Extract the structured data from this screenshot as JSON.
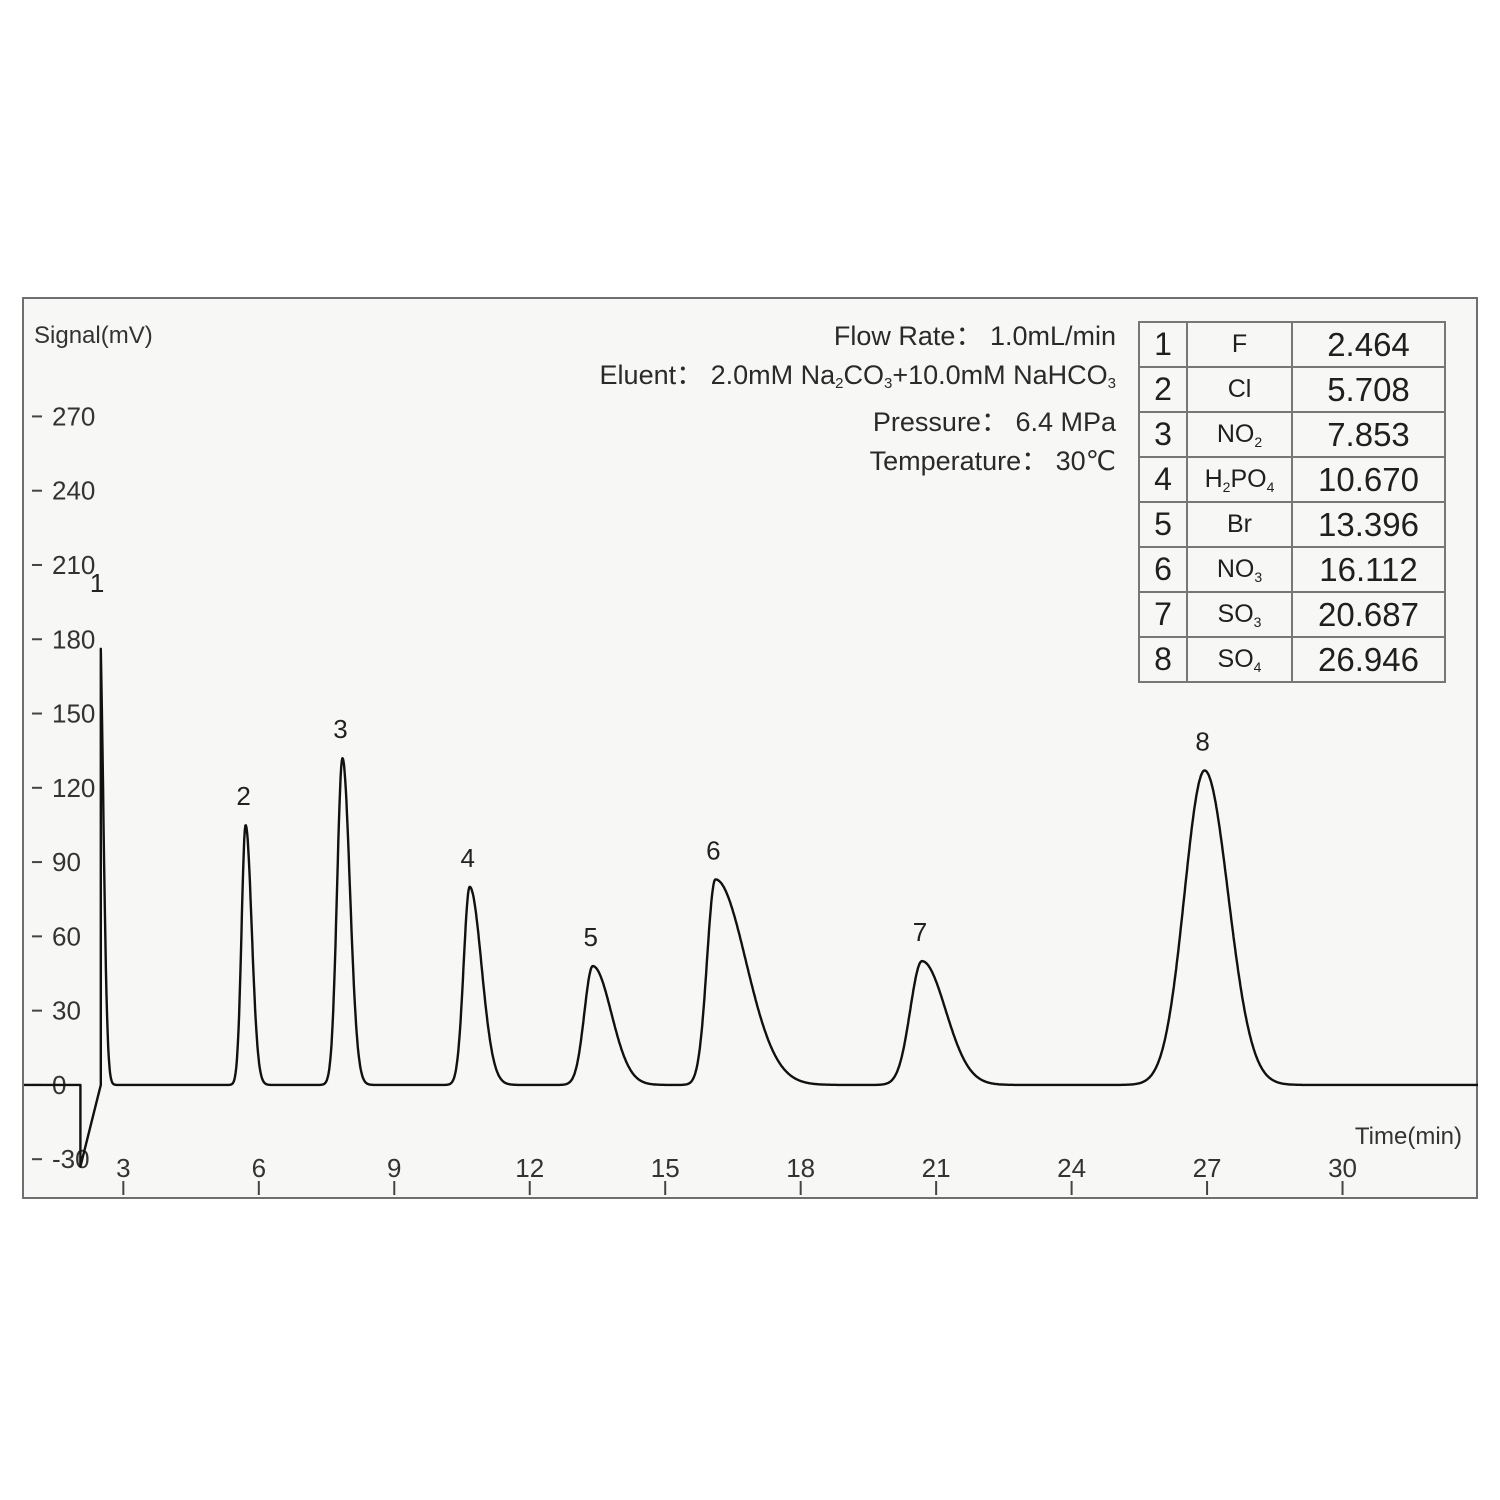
{
  "chart_data": {
    "type": "line",
    "xlabel": "Time(min)",
    "ylabel": "Signal(mV)",
    "xlim": [
      0.8,
      33.0
    ],
    "ylim": [
      -38,
      294
    ],
    "x_ticks": [
      3,
      6,
      9,
      12,
      15,
      18,
      21,
      24,
      27,
      30
    ],
    "y_ticks": [
      270,
      240,
      210,
      180,
      150,
      120,
      90,
      60,
      30,
      0,
      -30
    ],
    "grid": false,
    "baseline_segments": [
      {
        "x": [
          0.8,
          2.05
        ],
        "y": [
          0,
          0
        ]
      },
      {
        "x": [
          2.05,
          2.5
        ],
        "y": [
          -33,
          0
        ]
      }
    ],
    "peaks": [
      {
        "label": "1",
        "rt": 2.464,
        "height": 191,
        "tail_left": 0.12,
        "tail_right": 0.12
      },
      {
        "label": "2",
        "rt": 5.708,
        "height": 105,
        "tail_left": 0.12,
        "tail_right": 0.18
      },
      {
        "label": "3",
        "rt": 7.853,
        "height": 132,
        "tail_left": 0.16,
        "tail_right": 0.22
      },
      {
        "label": "4",
        "rt": 10.67,
        "height": 80,
        "tail_left": 0.18,
        "tail_right": 0.35
      },
      {
        "label": "5",
        "rt": 13.396,
        "height": 48,
        "tail_left": 0.25,
        "tail_right": 0.55
      },
      {
        "label": "6",
        "rt": 16.112,
        "height": 83,
        "tail_left": 0.25,
        "tail_right": 0.9
      },
      {
        "label": "7",
        "rt": 20.687,
        "height": 50,
        "tail_left": 0.35,
        "tail_right": 0.7
      },
      {
        "label": "8",
        "rt": 26.946,
        "height": 127,
        "tail_left": 0.6,
        "tail_right": 0.7
      }
    ]
  },
  "conditions": {
    "flow_rate": "Flow Rate： 1.0mL/min",
    "eluent_prefix": "Eluent： 2.0mM  Na",
    "eluent_sub1": "2",
    "eluent_mid1": "CO",
    "eluent_sub2": "3",
    "eluent_mid2": "+10.0mM NaHCO",
    "eluent_sub3": "3",
    "pressure": "Pressure： 6.4 MPa",
    "temperature": "Temperature： 30℃"
  },
  "peak_table": [
    {
      "no": "1",
      "ion": "F",
      "rt": "2.464"
    },
    {
      "no": "2",
      "ion": "Cl",
      "rt": "5.708"
    },
    {
      "no": "3",
      "ion": "NO",
      "sub": "2",
      "rt": "7.853"
    },
    {
      "no": "4",
      "ion_pre": "H",
      "sub_pre": "2",
      "ion": "PO",
      "sub": "4",
      "rt": "10.670"
    },
    {
      "no": "5",
      "ion": "Br",
      "rt": "13.396"
    },
    {
      "no": "6",
      "ion": "NO",
      "sub": "3",
      "rt": "16.112"
    },
    {
      "no": "7",
      "ion": "SO",
      "sub": "3",
      "rt": "20.687"
    },
    {
      "no": "8",
      "ion": "SO",
      "sub": "4",
      "rt": "26.946"
    }
  ]
}
